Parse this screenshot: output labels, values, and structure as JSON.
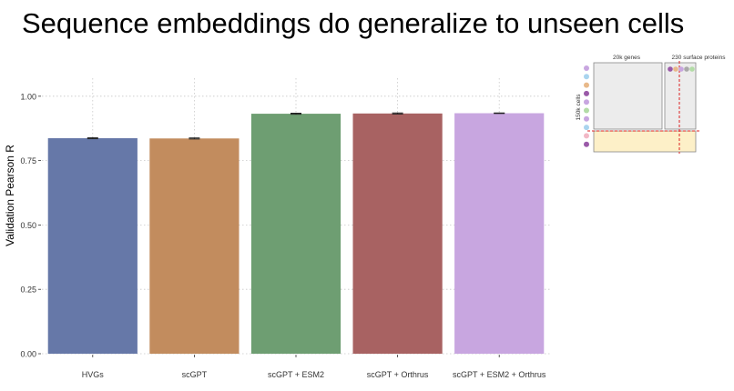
{
  "slide": {
    "title": "Sequence embeddings do generalize to unseen cells"
  },
  "chart_data": {
    "type": "bar",
    "categories": [
      "HVGs",
      "scGPT",
      "scGPT + ESM2",
      "scGPT + Orthrus",
      "scGPT + ESM2 + Orthrus"
    ],
    "values": [
      0.837,
      0.836,
      0.932,
      0.933,
      0.934
    ],
    "errors": [
      0.002,
      0.002,
      0.002,
      0.002,
      0.001
    ],
    "colors": [
      "#6678a8",
      "#c28c5e",
      "#6e9e72",
      "#a86262",
      "#c8a6e0"
    ],
    "title": "",
    "xlabel": "",
    "ylabel": "Validation Pearson R",
    "ylim": [
      0,
      1.07
    ],
    "yticks": [
      0.0,
      0.25,
      0.5,
      0.75,
      1.0
    ],
    "ytick_labels": [
      "0.00",
      "0.25",
      "0.50",
      "0.75",
      "1.00"
    ],
    "grid": true
  },
  "schematic": {
    "genes_label": "20k genes",
    "proteins_label": "230 surface proteins",
    "cells_label": "150k cells",
    "dot_colors": [
      "#c8a6e0",
      "#a9d4ee",
      "#e8b98a",
      "#9a5aa8",
      "#c8a6e0",
      "#b3dca7",
      "#c8a6e0",
      "#a9d4ee",
      "#f2b8c6",
      "#9a5aa8"
    ],
    "protein_dot_colors": [
      "#9a5aa8",
      "#e8b98a",
      "#c8a6e0",
      "#a9a9a9",
      "#b3dca7"
    ]
  }
}
